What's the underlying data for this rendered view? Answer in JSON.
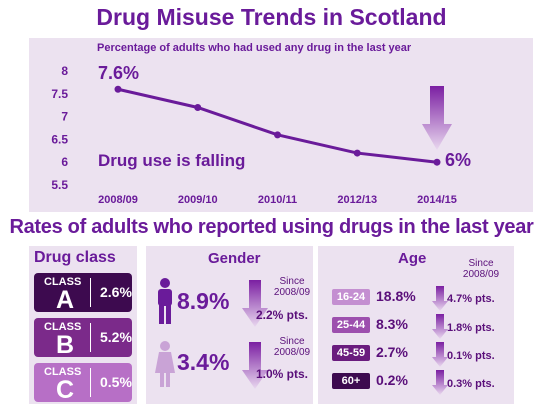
{
  "title": "Drug Misuse Trends in Scotland",
  "chart_data": {
    "type": "line",
    "title": "Percentage of adults who had used any drug in the last year",
    "categories": [
      "2008/09",
      "2009/10",
      "2010/11",
      "2012/13",
      "2014/15"
    ],
    "series": [
      {
        "values": [
          7.6,
          7.2,
          6.6,
          6.2,
          6.0
        ]
      }
    ],
    "ylim": [
      5.5,
      8
    ],
    "yticks": [
      "5.5",
      "6",
      "6.5",
      "7",
      "7.5",
      "8"
    ],
    "start_label": "7.6%",
    "end_label": "6%",
    "annotation": "Drug use is falling",
    "line_color": "#6a1b9a",
    "grid": false
  },
  "section_title": "Rates of adults who reported using drugs in the last year",
  "drug_class": {
    "title": "Drug class",
    "class_word": "CLASS",
    "items": [
      {
        "letter": "A",
        "value": "2.6%",
        "color": "#3d0a4f"
      },
      {
        "letter": "B",
        "value": "5.2%",
        "color": "#7b2a8a"
      },
      {
        "letter": "C",
        "value": "0.5%",
        "color": "#b76fc6"
      }
    ]
  },
  "gender": {
    "title": "Gender",
    "items": [
      {
        "icon": "male-icon",
        "value": "8.9%",
        "since": "Since\n2008/09",
        "change": "2.2% pts.",
        "color": "#6a1b9a"
      },
      {
        "icon": "female-icon",
        "value": "3.4%",
        "since": "Since\n2008/09",
        "change": "1.0% pts.",
        "color": "#c9a3d6"
      }
    ]
  },
  "age": {
    "title": "Age",
    "since": "Since\n2008/09",
    "items": [
      {
        "group": "16-24",
        "value": "18.8%",
        "change": "4.7% pts.",
        "color": "#c48fd1"
      },
      {
        "group": "25-44",
        "value": "8.3%",
        "change": "1.8% pts.",
        "color": "#9d4fae"
      },
      {
        "group": "45-59",
        "value": "2.7%",
        "change": "0.1% pts.",
        "color": "#6a1b7e"
      },
      {
        "group": "60+",
        "value": "0.2%",
        "change": "0.3% pts.",
        "color": "#3d0a4f"
      }
    ]
  }
}
